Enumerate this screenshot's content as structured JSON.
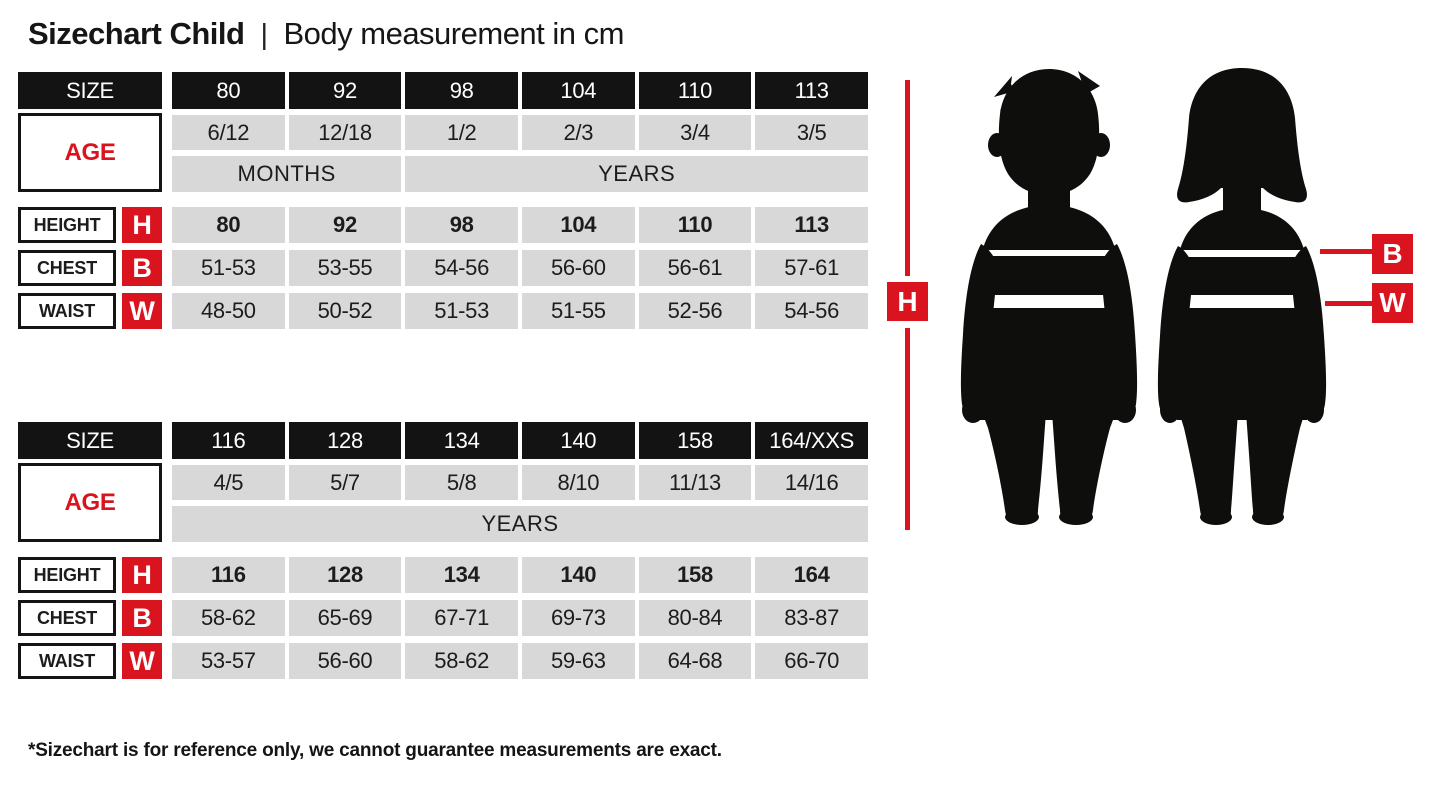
{
  "header": {
    "title": "Sizechart Child",
    "separator": "|",
    "subtitle": "Body measurement in cm"
  },
  "colors": {
    "accent_red": "#d9141e",
    "cell_black": "#131313",
    "cell_gray": "#d8d8d8",
    "silhouette_black": "#0e0e0c"
  },
  "chart_data": [
    {
      "type": "table",
      "title": "Sizechart Child sizes 80-113, body measurement in cm",
      "size_label": "SIZE",
      "age_label": "AGE",
      "sizes": [
        "80",
        "92",
        "98",
        "104",
        "110",
        "113"
      ],
      "ages": [
        "6/12",
        "12/18",
        "1/2",
        "2/3",
        "3/4",
        "3/5"
      ],
      "age_units": [
        {
          "label": "MONTHS",
          "span": 2
        },
        {
          "label": "YEARS",
          "span": 4
        }
      ],
      "measurements": [
        {
          "label": "HEIGHT",
          "letter": "H",
          "bold": true,
          "values": [
            "80",
            "92",
            "98",
            "104",
            "110",
            "113"
          ]
        },
        {
          "label": "CHEST",
          "letter": "B",
          "bold": false,
          "values": [
            "51-53",
            "53-55",
            "54-56",
            "56-60",
            "56-61",
            "57-61"
          ]
        },
        {
          "label": "WAIST",
          "letter": "W",
          "bold": false,
          "values": [
            "48-50",
            "50-52",
            "51-53",
            "51-55",
            "52-56",
            "54-56"
          ]
        }
      ]
    },
    {
      "type": "table",
      "title": "Sizechart Child sizes 116-164/XXS, body measurement in cm",
      "size_label": "SIZE",
      "age_label": "AGE",
      "sizes": [
        "116",
        "128",
        "134",
        "140",
        "158",
        "164/XXS"
      ],
      "ages": [
        "4/5",
        "5/7",
        "5/8",
        "8/10",
        "11/13",
        "14/16"
      ],
      "age_units": [
        {
          "label": "YEARS",
          "span": 6
        }
      ],
      "measurements": [
        {
          "label": "HEIGHT",
          "letter": "H",
          "bold": true,
          "values": [
            "116",
            "128",
            "134",
            "140",
            "158",
            "164"
          ]
        },
        {
          "label": "CHEST",
          "letter": "B",
          "bold": false,
          "values": [
            "58-62",
            "65-69",
            "67-71",
            "69-73",
            "80-84",
            "83-87"
          ]
        },
        {
          "label": "WAIST",
          "letter": "W",
          "bold": false,
          "values": [
            "53-57",
            "56-60",
            "58-62",
            "59-63",
            "64-68",
            "66-70"
          ]
        }
      ]
    }
  ],
  "figure": {
    "height_marker": "H",
    "chest_marker": "B",
    "waist_marker": "W",
    "silhouettes": [
      "boy",
      "girl"
    ]
  },
  "footnote": "*Sizechart is for reference only, we cannot guarantee measurements are exact."
}
